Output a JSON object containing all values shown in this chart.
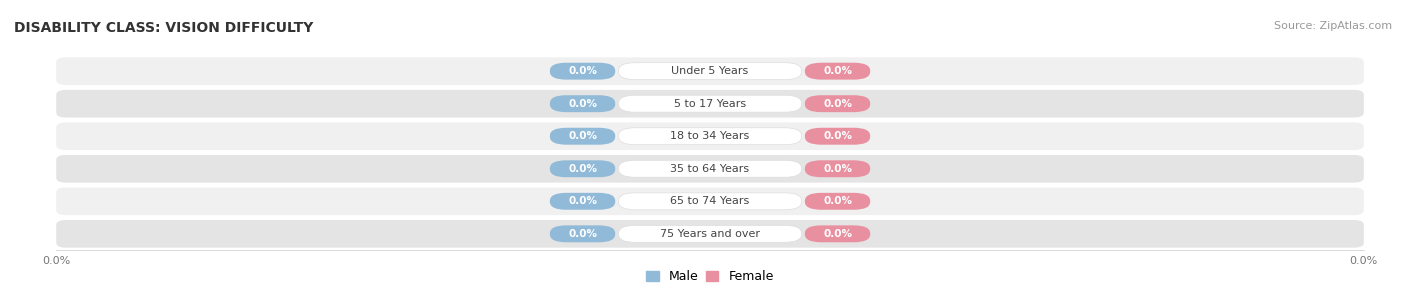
{
  "title": "DISABILITY CLASS: VISION DIFFICULTY",
  "source": "Source: ZipAtlas.com",
  "categories": [
    "Under 5 Years",
    "5 to 17 Years",
    "18 to 34 Years",
    "35 to 64 Years",
    "65 to 74 Years",
    "75 Years and over"
  ],
  "male_values": [
    0.0,
    0.0,
    0.0,
    0.0,
    0.0,
    0.0
  ],
  "female_values": [
    0.0,
    0.0,
    0.0,
    0.0,
    0.0,
    0.0
  ],
  "male_color": "#90BAD8",
  "female_color": "#E990A0",
  "row_bg_color_odd": "#F0F0F0",
  "row_bg_color_even": "#E4E4E4",
  "label_color": "#444444",
  "title_color": "#333333",
  "axis_label_color": "#777777",
  "figsize": [
    14.06,
    3.05
  ],
  "dpi": 100
}
